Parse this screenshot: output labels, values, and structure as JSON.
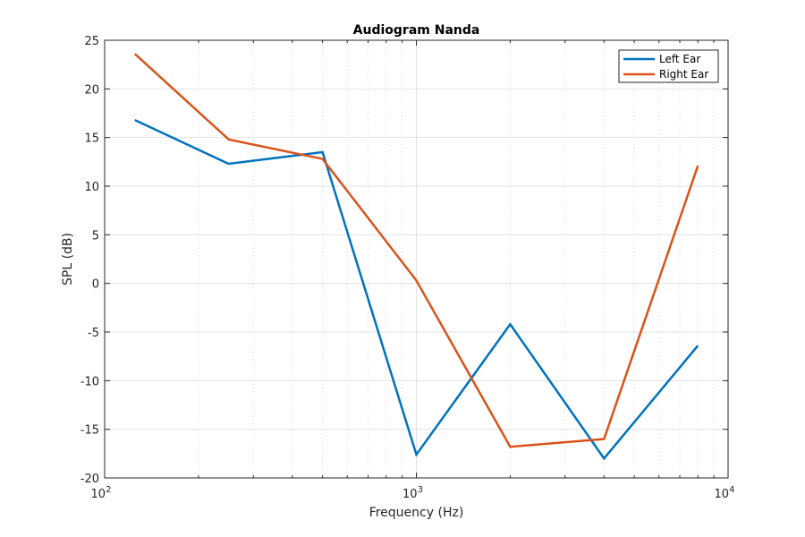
{
  "chart_data": {
    "type": "line",
    "title": "Audiogram Nanda",
    "xlabel": "Frequency (Hz)",
    "ylabel": "SPL (dB)",
    "xscale": "log",
    "xlim": [
      100,
      10000
    ],
    "ylim": [
      -20,
      25
    ],
    "x_ticks": [
      {
        "base": "10",
        "exp": "2",
        "value": 100
      },
      {
        "base": "10",
        "exp": "3",
        "value": 1000
      },
      {
        "base": "10",
        "exp": "4",
        "value": 10000
      }
    ],
    "y_ticks": [
      25,
      20,
      15,
      10,
      5,
      0,
      -5,
      -10,
      -15,
      -20
    ],
    "y_tick_labels": [
      "25",
      "20",
      "15",
      "10",
      "5",
      "0",
      "-5",
      "-10",
      "-15",
      "-20"
    ],
    "grid": true,
    "minor_grid": true,
    "legend_position": "top-right",
    "series": [
      {
        "name": "Left Ear",
        "color": "#0072BD",
        "x": [
          125,
          250,
          500,
          1000,
          2000,
          4000,
          8000
        ],
        "y": [
          16.8,
          12.3,
          13.5,
          -17.6,
          -4.2,
          -18.0,
          -6.4
        ]
      },
      {
        "name": "Right Ear",
        "color": "#D95319",
        "x": [
          125,
          250,
          500,
          1000,
          2000,
          4000,
          8000
        ],
        "y": [
          23.6,
          14.8,
          12.8,
          0.3,
          -16.8,
          -16.0,
          12.1
        ]
      }
    ]
  }
}
